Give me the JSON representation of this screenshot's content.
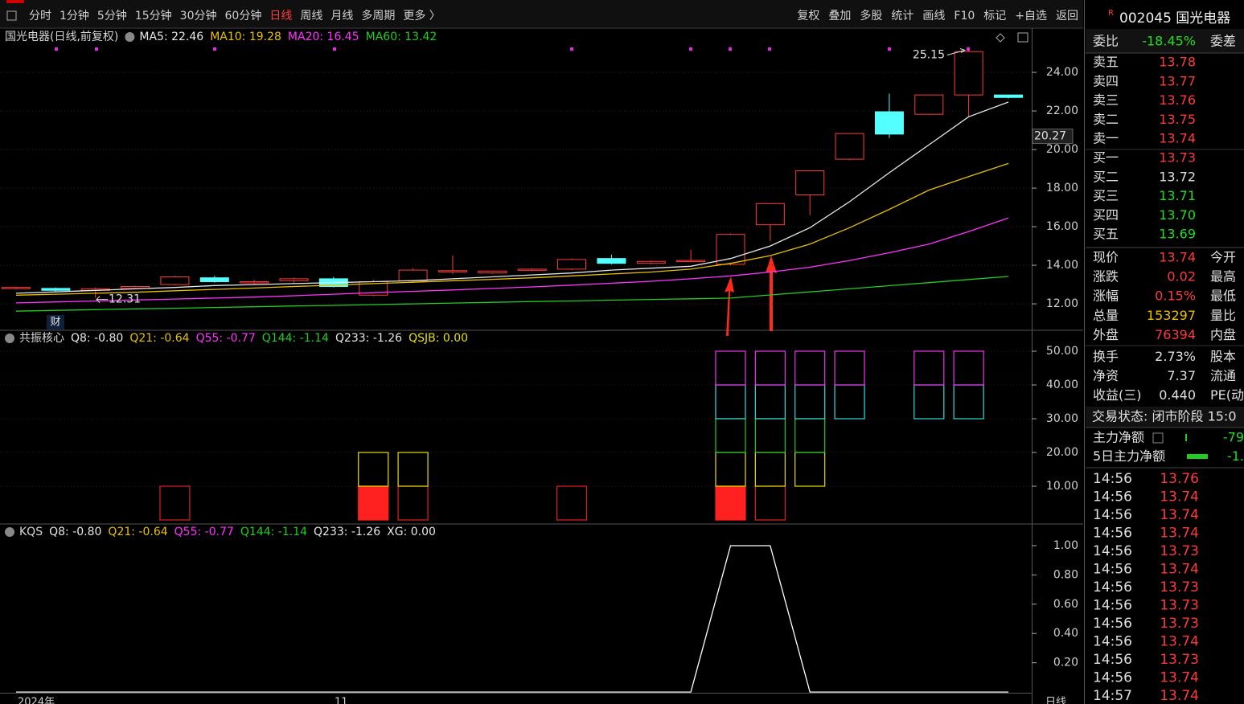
{
  "toolbar": {
    "left": [
      "分时",
      "1分钟",
      "5分钟",
      "15分钟",
      "30分钟",
      "60分钟",
      "日线",
      "周线",
      "月线",
      "多周期",
      "更多 〉"
    ],
    "active": 6,
    "right": [
      "复权",
      "叠加",
      "多股",
      "统计",
      "画线",
      "F10",
      "标记",
      "+自选",
      "返回"
    ]
  },
  "stock": {
    "flag": "R",
    "code": "002045 国光电器"
  },
  "main_chart": {
    "title": "国光电器(日线,前复权)",
    "ma_labels": [
      {
        "text": "MA5: 22.46",
        "color": "#e8e8e8"
      },
      {
        "text": "MA10: 19.28",
        "color": "#e8c000"
      },
      {
        "text": "MA20: 16.45",
        "color": "#ff33ff"
      },
      {
        "text": "MA60: 13.42",
        "color": "#22cc22"
      }
    ],
    "ylim": [
      10.67,
      26.17
    ],
    "yticks": [
      {
        "value": 12,
        "label": "12.00"
      },
      {
        "value": 14,
        "label": "14.00"
      },
      {
        "value": 16,
        "label": "16.00"
      },
      {
        "value": 18,
        "label": "18.00"
      },
      {
        "value": 20,
        "label": "20.00"
      },
      {
        "value": 22,
        "label": "22.00"
      },
      {
        "value": 24,
        "label": "24.00"
      }
    ],
    "cursor_price": 20.27,
    "up_color": "#ff3b3b",
    "down_color": "#54ffff",
    "candles": {
      "open": [
        12.8,
        12.8,
        12.7,
        12.8,
        13.0,
        13.35,
        13.1,
        13.2,
        13.3,
        12.45,
        13.2,
        13.7,
        13.6,
        13.75,
        13.8,
        14.35,
        14.1,
        14.2,
        14.05,
        16.1,
        17.65,
        19.5,
        21.96,
        21.83,
        22.83,
        22.83
      ],
      "high": [
        12.9,
        12.85,
        12.85,
        12.95,
        13.45,
        13.45,
        13.25,
        13.35,
        13.4,
        13.25,
        13.85,
        14.5,
        13.72,
        13.85,
        14.35,
        14.55,
        14.25,
        14.8,
        15.65,
        17.2,
        18.9,
        20.83,
        22.9,
        22.83,
        25.15,
        22.85
      ],
      "low": [
        12.75,
        12.65,
        12.31,
        12.75,
        12.95,
        13.1,
        13.0,
        13.1,
        12.85,
        12.4,
        13.15,
        13.55,
        13.55,
        13.7,
        13.75,
        14.05,
        14.05,
        14.15,
        14.0,
        15.25,
        16.6,
        19.45,
        20.6,
        21.8,
        21.7,
        22.65
      ],
      "close": [
        12.85,
        12.7,
        12.78,
        12.9,
        13.4,
        13.15,
        13.15,
        13.3,
        12.9,
        13.15,
        13.75,
        13.72,
        13.7,
        13.8,
        14.3,
        14.1,
        14.2,
        14.25,
        15.6,
        17.2,
        18.9,
        20.83,
        20.8,
        22.83,
        25.08,
        22.7
      ]
    },
    "ma_lines": [
      {
        "color": "#e8e8e8",
        "values": [
          12.55,
          12.62,
          12.7,
          12.78,
          12.85,
          12.95,
          13.0,
          13.05,
          13.1,
          13.15,
          13.2,
          13.3,
          13.4,
          13.5,
          13.6,
          13.75,
          13.85,
          13.95,
          14.35,
          15.0,
          15.95,
          17.3,
          18.8,
          20.25,
          21.7,
          22.46
        ]
      },
      {
        "color": "#e8c000",
        "values": [
          12.45,
          12.5,
          12.55,
          12.6,
          12.68,
          12.75,
          12.82,
          12.9,
          12.97,
          13.05,
          13.12,
          13.2,
          13.27,
          13.35,
          13.45,
          13.55,
          13.65,
          13.8,
          14.1,
          14.5,
          15.1,
          15.95,
          16.9,
          17.9,
          18.6,
          19.28
        ]
      },
      {
        "color": "#ff33ff",
        "values": [
          12.05,
          12.1,
          12.15,
          12.2,
          12.25,
          12.3,
          12.35,
          12.42,
          12.5,
          12.58,
          12.65,
          12.72,
          12.8,
          12.88,
          12.97,
          13.07,
          13.17,
          13.3,
          13.45,
          13.65,
          13.9,
          14.25,
          14.65,
          15.1,
          15.75,
          16.45
        ]
      },
      {
        "color": "#22cc22",
        "values": [
          11.62,
          11.66,
          11.7,
          11.74,
          11.77,
          11.81,
          11.85,
          11.89,
          11.92,
          11.96,
          12.0,
          12.04,
          12.08,
          12.12,
          12.15,
          12.19,
          12.23,
          12.26,
          12.3,
          12.46,
          12.62,
          12.78,
          12.94,
          13.1,
          13.26,
          13.42
        ]
      }
    ],
    "high_label": 25.15,
    "low_label": 12.31,
    "finance_tag": "财"
  },
  "panel_resonance": {
    "name": "共振核心",
    "labels": [
      {
        "text": "Q8: -0.80",
        "color": "#e8e8e8"
      },
      {
        "text": "Q21: -0.64",
        "color": "#e8c000"
      },
      {
        "text": "Q55: -0.77",
        "color": "#ff33ff"
      },
      {
        "text": "Q144: -1.14",
        "color": "#22cc22"
      },
      {
        "text": "Q233: -1.26",
        "color": "#e8e8e8"
      },
      {
        "text": "QSJB: 0.00",
        "color": "#e8e000"
      }
    ],
    "ylim": [
      -0.95,
      55.95
    ],
    "yticks": [
      {
        "value": 10,
        "label": "10.00"
      },
      {
        "value": 20,
        "label": "20.00"
      },
      {
        "value": 30,
        "label": "30.00"
      },
      {
        "value": 40,
        "label": "40.00"
      },
      {
        "value": 50,
        "label": "50.00"
      }
    ],
    "boxes": [
      {
        "color": "#ff2020",
        "fill": true,
        "ranges": [
          null,
          null,
          null,
          null,
          null,
          null,
          null,
          null,
          null,
          [
            0,
            10
          ],
          null,
          null,
          null,
          null,
          null,
          null,
          null,
          null,
          [
            0,
            10
          ],
          null,
          null,
          null,
          null,
          null,
          null,
          null
        ]
      },
      {
        "color": "#e02020",
        "fill": false,
        "ranges": [
          null,
          null,
          null,
          null,
          [
            0,
            10
          ],
          null,
          null,
          null,
          null,
          null,
          [
            0,
            10
          ],
          null,
          null,
          null,
          [
            0,
            10
          ],
          null,
          null,
          null,
          null,
          [
            0,
            10
          ],
          null,
          null,
          null,
          null,
          null,
          null
        ]
      },
      {
        "color": "#e8e000",
        "fill": false,
        "ranges": [
          null,
          null,
          null,
          null,
          null,
          null,
          null,
          null,
          null,
          [
            10,
            20
          ],
          [
            10,
            20
          ],
          null,
          null,
          null,
          null,
          null,
          null,
          null,
          [
            10,
            20
          ],
          [
            10,
            20
          ],
          [
            10,
            20
          ],
          null,
          null,
          null,
          null,
          null
        ]
      },
      {
        "color": "#22cc22",
        "fill": false,
        "ranges": [
          null,
          null,
          null,
          null,
          null,
          null,
          null,
          null,
          null,
          null,
          null,
          null,
          null,
          null,
          null,
          null,
          null,
          null,
          [
            20,
            30
          ],
          [
            20,
            30
          ],
          [
            20,
            30
          ],
          null,
          null,
          null,
          null,
          null
        ]
      },
      {
        "color": "#33dddd",
        "fill": false,
        "ranges": [
          null,
          null,
          null,
          null,
          null,
          null,
          null,
          null,
          null,
          null,
          null,
          null,
          null,
          null,
          null,
          null,
          null,
          null,
          [
            30,
            40
          ],
          [
            30,
            40
          ],
          [
            30,
            40
          ],
          [
            30,
            40
          ],
          null,
          [
            30,
            40
          ],
          [
            30,
            40
          ],
          null
        ]
      },
      {
        "color": "#ee33ee",
        "fill": false,
        "ranges": [
          null,
          null,
          null,
          null,
          null,
          null,
          null,
          null,
          null,
          null,
          null,
          null,
          null,
          null,
          null,
          null,
          null,
          null,
          [
            40,
            50
          ],
          [
            40,
            50
          ],
          [
            40,
            50
          ],
          [
            40,
            50
          ],
          null,
          [
            40,
            50
          ],
          [
            40,
            50
          ],
          null
        ]
      }
    ]
  },
  "panel_kqs": {
    "name": "KQS",
    "labels": [
      {
        "text": "Q8: -0.80",
        "color": "#e8e8e8"
      },
      {
        "text": "Q21: -0.64",
        "color": "#e8c000"
      },
      {
        "text": "Q55: -0.77",
        "color": "#ff33ff"
      },
      {
        "text": "Q144: -1.14",
        "color": "#22cc22"
      },
      {
        "text": "Q233: -1.26",
        "color": "#e8e8e8"
      },
      {
        "text": "XG: 0.00",
        "color": "#e8e8e8"
      }
    ],
    "ylim": [
      -0.027,
      1.137
    ],
    "yticks": [
      {
        "value": 0.2,
        "label": "0.20"
      },
      {
        "value": 0.4,
        "label": "0.40"
      },
      {
        "value": 0.6,
        "label": "0.60"
      },
      {
        "value": 0.8,
        "label": "0.80"
      },
      {
        "value": 1,
        "label": "1.00"
      }
    ],
    "line": {
      "color": "#ffffff",
      "values": [
        0,
        0,
        0,
        0,
        0,
        0,
        0,
        0,
        0,
        0,
        0,
        0,
        0,
        0,
        0,
        0,
        0,
        0,
        1,
        1,
        0,
        0,
        0,
        0,
        0,
        0
      ]
    }
  },
  "x_axis": {
    "labels": [
      "2024年",
      "11"
    ],
    "period": "日线"
  },
  "quote": {
    "ratio": {
      "label": "委比",
      "value": "-18.45%",
      "label2": "委差"
    },
    "book": [
      {
        "label": "卖五",
        "price": "13.78",
        "color": "#ff3b3b"
      },
      {
        "label": "卖四",
        "price": "13.77",
        "color": "#ff3b3b"
      },
      {
        "label": "卖三",
        "price": "13.76",
        "color": "#ff3b3b"
      },
      {
        "label": "卖二",
        "price": "13.75",
        "color": "#ff3b3b"
      },
      {
        "label": "卖一",
        "price": "13.74",
        "color": "#ff3b3b"
      },
      {
        "label": "买一",
        "price": "13.73",
        "color": "#ff3b3b"
      },
      {
        "label": "买二",
        "price": "13.72",
        "color": "#e0e0e0"
      },
      {
        "label": "买三",
        "price": "13.71",
        "color": "#22dd22"
      },
      {
        "label": "买四",
        "price": "13.70",
        "color": "#22dd22"
      },
      {
        "label": "买五",
        "price": "13.69",
        "color": "#22dd22"
      }
    ],
    "stats": [
      {
        "label": "现价",
        "value": "13.74",
        "color": "#ff3b3b",
        "label2": "今开"
      },
      {
        "label": "涨跌",
        "value": "0.02",
        "color": "#ff3b3b",
        "label2": "最高"
      },
      {
        "label": "涨幅",
        "value": "0.15%",
        "color": "#ff3b3b",
        "label2": "最低"
      },
      {
        "label": "总量",
        "value": "153297",
        "color": "#e8c000",
        "label2": "量比"
      },
      {
        "label": "外盘",
        "value": "76394",
        "color": "#ff3b3b",
        "label2": "内盘"
      },
      {
        "label": "换手",
        "value": "2.73%",
        "color": "#e0e0e0",
        "label2": "股本"
      },
      {
        "label": "净资",
        "value": "7.37",
        "color": "#e0e0e0",
        "label2": "流通"
      },
      {
        "label": "收益(三)",
        "value": "0.440",
        "color": "#e0e0e0",
        "label2": "PE(动"
      }
    ],
    "status": "交易状态: 闭市阶段 15:0",
    "flow": [
      {
        "label": "主力净额",
        "value": "-79"
      },
      {
        "label": "5日主力净额",
        "value": "-1."
      }
    ],
    "trades": [
      {
        "time": "14:56",
        "price": "13.76"
      },
      {
        "time": "14:56",
        "price": "13.74"
      },
      {
        "time": "14:56",
        "price": "13.74"
      },
      {
        "time": "14:56",
        "price": "13.74"
      },
      {
        "time": "14:56",
        "price": "13.73"
      },
      {
        "time": "14:56",
        "price": "13.74"
      },
      {
        "time": "14:56",
        "price": "13.73"
      },
      {
        "time": "14:56",
        "price": "13.73"
      },
      {
        "time": "14:56",
        "price": "13.73"
      },
      {
        "time": "14:56",
        "price": "13.74"
      },
      {
        "time": "14:56",
        "price": "13.73"
      },
      {
        "time": "14:56",
        "price": "13.74"
      },
      {
        "time": "14:57",
        "price": "13.74"
      }
    ]
  }
}
